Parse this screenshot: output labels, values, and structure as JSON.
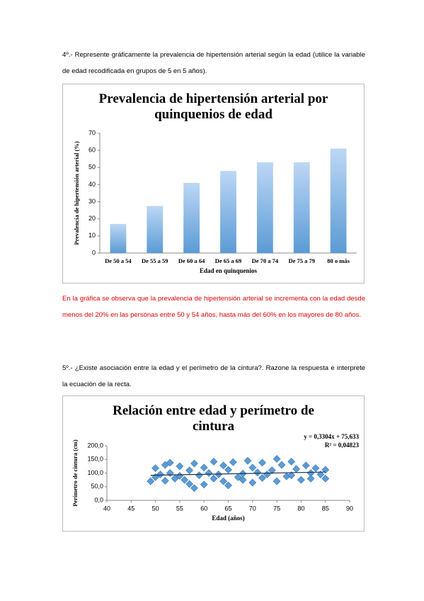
{
  "question4": "4º.- Represente gráficamente la prevalencia de hipertensión arterial según la edad (utilice la variable de edad recodificada en grupos de 5 en 5 años).",
  "answer4": "En la gráfica se observa que la prevalencia de hipertensión arterial se incrementa con la edad desde menos del 20% en las personas entre 50 y 54 años, hasta más del 60% en los mayores de 80 años.",
  "question5": "5º.- ¿Existe asociación entre la edad y el perímetro de la cintura?. Razone la respuesta e interprete la ecuación de la recta.",
  "chart_data": [
    {
      "type": "bar",
      "title": "Prevalencia de hipertensión arterial por quinquenios de edad",
      "x_label": "Edad en quinquenios",
      "y_label": "Prevalencia de hipertensión arterial (%)",
      "categories": [
        "De 50 a 54",
        "De 55 a 59",
        "De 60 a 64",
        "De 65 a 69",
        "De 70 a 74",
        "De 75 a 79",
        "80 o más"
      ],
      "values": [
        17,
        27.5,
        41,
        48,
        53,
        53,
        61
      ],
      "color": "#5b9bd5",
      "ylim": [
        0,
        70
      ],
      "yticks": [
        0,
        10,
        20,
        30,
        40,
        50,
        60,
        70
      ]
    },
    {
      "type": "scatter",
      "title": "Relación entre edad y perímetro de cintura",
      "x_label": "Edad (años)",
      "y_label": "Perímetro de cintura (cm)",
      "x": [
        49,
        50,
        50,
        51,
        52,
        52,
        53,
        53,
        54,
        55,
        55,
        56,
        57,
        57,
        58,
        58,
        59,
        60,
        60,
        61,
        62,
        62,
        63,
        64,
        64,
        65,
        65,
        66,
        67,
        68,
        68,
        69,
        70,
        70,
        71,
        72,
        72,
        73,
        74,
        75,
        75,
        76,
        77,
        78,
        78,
        79,
        80,
        81,
        82,
        82,
        83,
        84,
        85,
        85
      ],
      "values": [
        70,
        118,
        85,
        95,
        130,
        72,
        138,
        100,
        80,
        125,
        90,
        75,
        110,
        60,
        45,
        135,
        92,
        120,
        58,
        100,
        142,
        80,
        95,
        128,
        70,
        55,
        112,
        140,
        85,
        98,
        75,
        145,
        120,
        65,
        102,
        138,
        82,
        95,
        110,
        152,
        70,
        130,
        88,
        142,
        92,
        115,
        75,
        128,
        100,
        80,
        118,
        95,
        112,
        80
      ],
      "color": "#5b9bd5",
      "trendline": {
        "slope": 0.3304,
        "intercept": 75.633,
        "equation": "y = 0,3304x + 75,633",
        "r2": "R² = 0,04823"
      },
      "xlim": [
        40,
        90
      ],
      "xticks": [
        40,
        45,
        50,
        55,
        60,
        65,
        70,
        75,
        80,
        85,
        90
      ],
      "ylim": [
        0,
        200
      ],
      "yticks": [
        {
          "value": 0,
          "label": "0,0"
        },
        {
          "value": 50,
          "label": "50,0"
        },
        {
          "value": 100,
          "label": "100,0"
        },
        {
          "value": 150,
          "label": "150,0"
        },
        {
          "value": 200,
          "label": "200,0"
        }
      ]
    }
  ]
}
